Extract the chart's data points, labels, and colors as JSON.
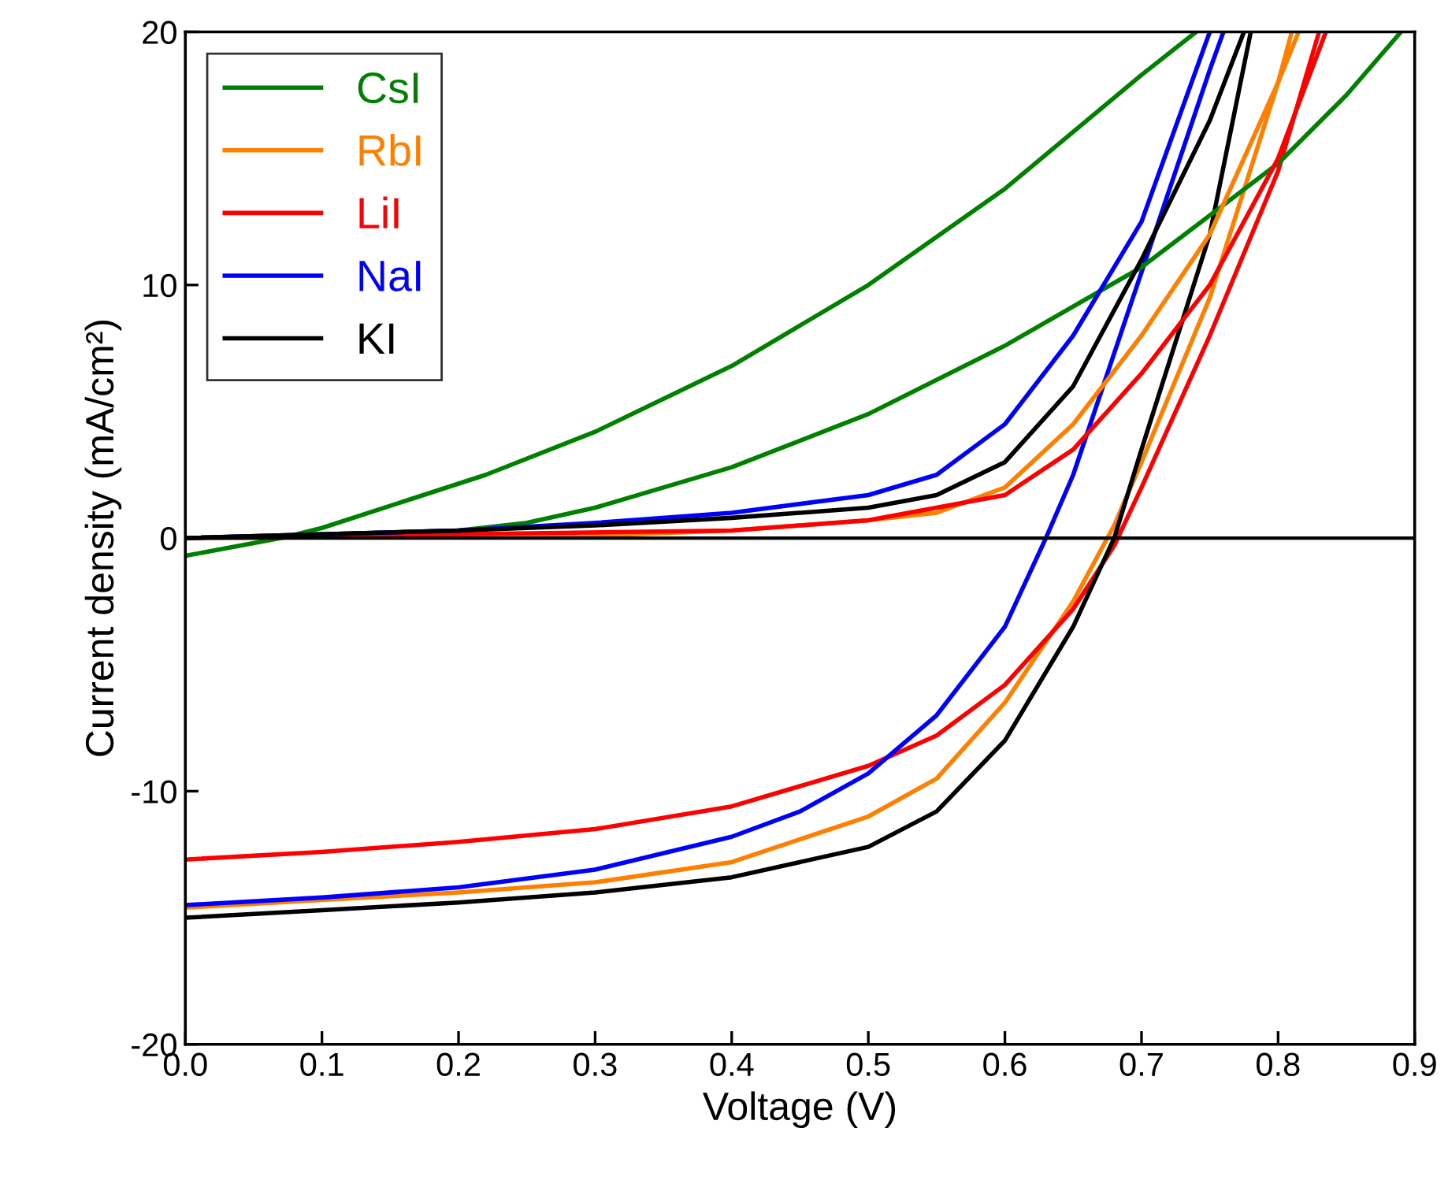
{
  "chart_data": {
    "type": "line",
    "xlabel": "Voltage (V)",
    "ylabel": "Current density (mA/cm²)",
    "xlim": [
      0,
      0.9
    ],
    "ylim": [
      -20,
      20
    ],
    "xticks": [
      {
        "value": 0,
        "label": "0.0"
      },
      {
        "value": 0.1,
        "label": "0.1"
      },
      {
        "value": 0.2,
        "label": "0.2"
      },
      {
        "value": 0.3,
        "label": "0.3"
      },
      {
        "value": 0.4,
        "label": "0.4"
      },
      {
        "value": 0.5,
        "label": "0.5"
      },
      {
        "value": 0.6,
        "label": "0.6"
      },
      {
        "value": 0.7,
        "label": "0.7"
      },
      {
        "value": 0.8,
        "label": "0.8"
      },
      {
        "value": 0.9,
        "label": "0.9"
      }
    ],
    "yticks": [
      -20,
      -10,
      0,
      10,
      20
    ],
    "grid": false,
    "legend": "top left",
    "marker": "none",
    "line_style": "solid",
    "ref_lines": [
      {
        "axis": "y",
        "value": 0,
        "color": "#000000"
      }
    ],
    "series": [
      {
        "name": "CsI",
        "color": "#008000",
        "x": [
          0,
          0.07,
          0.1,
          0.22,
          0.3,
          0.4,
          0.5,
          0.6,
          0.7,
          0.74
        ],
        "values": [
          -0.7,
          0,
          0.4,
          2.5,
          4.2,
          6.8,
          10,
          13.8,
          18.3,
          20
        ]
      },
      {
        "name": "RbI",
        "color": "#ff8000",
        "x": [
          0,
          0.1,
          0.2,
          0.3,
          0.4,
          0.5,
          0.55,
          0.6,
          0.65,
          0.68,
          0.7,
          0.75,
          0.8,
          0.81
        ],
        "values": [
          -14.6,
          -14.3,
          -14.0,
          -13.6,
          -12.8,
          -11.0,
          -9.5,
          -6.5,
          -2.5,
          0.5,
          3,
          9.5,
          18,
          20
        ]
      },
      {
        "name": "LiI",
        "color": "#ff0000",
        "x": [
          0,
          0.1,
          0.2,
          0.3,
          0.4,
          0.5,
          0.55,
          0.6,
          0.65,
          0.68,
          0.7,
          0.75,
          0.8,
          0.83
        ],
        "values": [
          -12.7,
          -12.4,
          -12.0,
          -11.5,
          -10.6,
          -9.0,
          -7.8,
          -5.8,
          -2.8,
          -0.3,
          2,
          8,
          14.5,
          20
        ]
      },
      {
        "name": "NaI",
        "color": "#0000ff",
        "x": [
          0,
          0.1,
          0.2,
          0.3,
          0.4,
          0.45,
          0.5,
          0.55,
          0.6,
          0.63,
          0.65,
          0.7,
          0.75,
          0.76
        ],
        "values": [
          -14.5,
          -14.2,
          -13.8,
          -13.1,
          -11.8,
          -10.8,
          -9.3,
          -7,
          -3.5,
          0,
          2.5,
          10.5,
          18.5,
          20
        ]
      },
      {
        "name": "KI",
        "color": "#000000",
        "x": [
          0,
          0.1,
          0.2,
          0.3,
          0.4,
          0.5,
          0.55,
          0.6,
          0.65,
          0.68,
          0.7,
          0.75,
          0.78
        ],
        "values": [
          -15,
          -14.7,
          -14.4,
          -14.0,
          -13.4,
          -12.2,
          -10.8,
          -8.0,
          -3.5,
          0,
          3.5,
          12,
          20
        ]
      },
      {
        "color": "#008000",
        "x": [
          0,
          0.2,
          0.25,
          0.3,
          0.4,
          0.5,
          0.6,
          0.7,
          0.8,
          0.85,
          0.89
        ],
        "values": [
          0,
          0.3,
          0.6,
          1.2,
          2.8,
          4.9,
          7.6,
          10.7,
          14.8,
          17.5,
          20
        ]
      },
      {
        "color": "#ff8000",
        "x": [
          0,
          0.3,
          0.4,
          0.5,
          0.55,
          0.6,
          0.65,
          0.7,
          0.75,
          0.8,
          0.815
        ],
        "values": [
          0,
          0.1,
          0.3,
          0.7,
          1.0,
          2.0,
          4.5,
          8,
          12,
          18,
          20
        ]
      },
      {
        "color": "#ff0000",
        "x": [
          0,
          0.4,
          0.5,
          0.6,
          0.65,
          0.7,
          0.75,
          0.8,
          0.835
        ],
        "values": [
          0,
          0.3,
          0.7,
          1.7,
          3.5,
          6.5,
          10,
          15,
          20
        ]
      },
      {
        "color": "#0000ff",
        "x": [
          0,
          0.2,
          0.3,
          0.4,
          0.5,
          0.55,
          0.6,
          0.65,
          0.7,
          0.75
        ],
        "values": [
          0,
          0.3,
          0.6,
          1.0,
          1.7,
          2.5,
          4.5,
          8,
          12.5,
          20
        ]
      },
      {
        "color": "#000000",
        "x": [
          0,
          0.2,
          0.3,
          0.4,
          0.5,
          0.55,
          0.6,
          0.65,
          0.7,
          0.75,
          0.775
        ],
        "values": [
          0,
          0.3,
          0.5,
          0.8,
          1.2,
          1.7,
          3,
          6,
          11,
          16.5,
          20
        ]
      }
    ]
  }
}
